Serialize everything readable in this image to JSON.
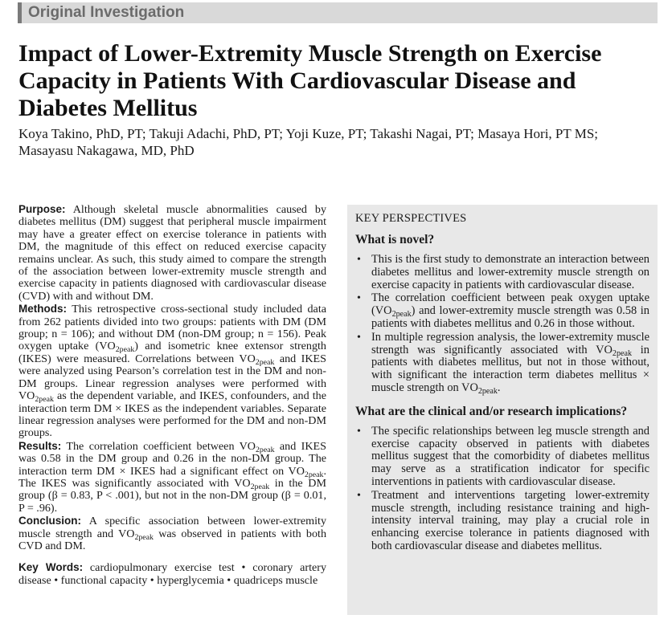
{
  "header": {
    "section_label": "Original Investigation"
  },
  "title": "Impact of Lower-Extremity Muscle Strength on Exercise Capacity in Patients With Cardiovascular Disease and Diabetes Mellitus",
  "authors": "Koya Takino, PhD, PT; Takuji Adachi, PhD, PT; Yoji Kuze, PT; Takashi Nagai, PT; Masaya Hori, PT MS; Masayasu Nakagawa, MD, PhD",
  "abstract": {
    "purpose": {
      "heading": "Purpose:",
      "text": " Although skeletal muscle abnormalities caused by diabetes mellitus (DM) suggest that peripheral muscle impair­ment may have a greater effect on exercise tolerance in patients with DM, the magnitude of this effect on reduced exercise capacity remains unclear. As such, this study aimed to compare the strength of the association between lower-extremity muscle strength and exercise capacity in patients diagnosed with cardi­ovascular disease (CVD) with and without DM."
    },
    "methods": {
      "heading": "Methods:",
      "t1": " This retrospective cross-sectional study included data from 262 patients divided into two groups: patients with DM (DM group; n = 106); and without DM (non-DM group; n = 156). Peak oxygen uptake (VO",
      "t2": ") and isometric knee extensor strength (IKES) were measured. Correlations between VO",
      "t3": " and IKES were analyzed using Pearson’s correlation test in the DM and non-DM groups. Linear regression analyses were performed with VO",
      "t4": " as the dependent variable, and IKES, confounders, and the interaction term DM × IKES as the independent variables. Separate linear regression analyses were performed for the DM and non-DM groups."
    },
    "results": {
      "heading": "Results:",
      "t1": " The correlation coefficient between VO",
      "t2": " and IKES was 0.58 in the DM group and 0.26 in the non-DM group. The interaction term DM × IKES had a significant effect on VO",
      "t3": ". The IKES was significantly associated with VO",
      "t4": " in the DM group (β = 0.83, P < .001), but not in the non-DM group (β = 0.01, P = .96)."
    },
    "conclusion": {
      "heading": "Conclusion:",
      "t1": " A specific association between lower-extremity muscle strength and VO",
      "t2": " was observed in patients with both CVD and DM."
    },
    "keywords": {
      "heading": "Key Words:",
      "text": " cardiopulmonary exercise test • coronary artery disease • functional capacity • hyperglycemia • quadriceps muscle"
    },
    "subscript_peak": "2peak"
  },
  "key_perspectives": {
    "title": "KEY PERSPECTIVES",
    "bullet_symbol": "•",
    "novel_heading": "What is novel?",
    "novel_items": {
      "item1": "This is the first study to demonstrate an interaction between diabetes mellitus and lower-extremity mus­cle strength on exercise capacity in patients with car­diovascular disease.",
      "item2_a": "The correlation coefficient between peak oxygen uptake (VO",
      "item2_b": ") and lower-extremity muscle strength was 0.58 in patients with diabetes mellitus and 0.26 in those without.",
      "item3_a": "In multiple regression analysis, the lower-extremity muscle strength was significantly associated with VO",
      "item3_b": " in patients with diabetes mellitus, but not in those without, with significant the interaction term diabetes mellitus × muscle strength on VO",
      "item3_c": "."
    },
    "implications_heading": "What are the clinical and/or research implications?",
    "implications_items": [
      "The specific relationships between leg muscle strength and exercise capacity observed in patients with diabetes mellitus suggest that the comorbidity of diabetes melli­tus may serve as a stratification indicator for specific interventions in patients with cardiovascular disease.",
      "Treatment and interventions targeting lower-extre­mity muscle strength, including resistance training and high-intensity interval training, may play a cru­cial role in enhancing exercise tolerance in patients diagnosed with both cardiovascular disease and dia­betes mellitus."
    ]
  }
}
